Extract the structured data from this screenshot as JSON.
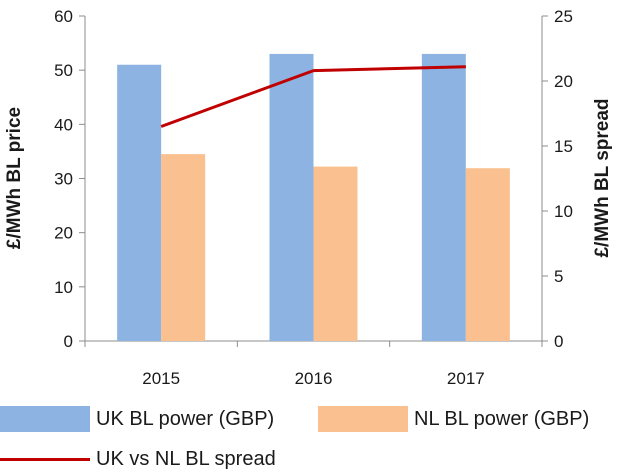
{
  "chart_data": {
    "type": "bar",
    "categories": [
      "2015",
      "2016",
      "2017"
    ],
    "title": "",
    "ylabel": "£/MWh BL price",
    "y2label": "£/MWh BL spread",
    "ylim": [
      0,
      60
    ],
    "yticks": [
      0,
      10,
      20,
      30,
      40,
      50,
      60
    ],
    "y2lim": [
      0,
      25
    ],
    "y2ticks": [
      0,
      5,
      10,
      15,
      20,
      25
    ],
    "grid": false,
    "legend_position": "bottom",
    "series": [
      {
        "name": "UK BL power (GBP)",
        "type": "bar",
        "axis": "left",
        "color": "#8DB3E2",
        "values": [
          51,
          53,
          53
        ]
      },
      {
        "name": "NL BL power (GBP)",
        "type": "bar",
        "axis": "left",
        "color": "#FAC090",
        "values": [
          34.5,
          32.2,
          31.9
        ]
      },
      {
        "name": "UK vs NL BL spread",
        "type": "line",
        "axis": "right",
        "color": "#C00000",
        "values": [
          16.5,
          20.8,
          21.1
        ]
      }
    ]
  }
}
